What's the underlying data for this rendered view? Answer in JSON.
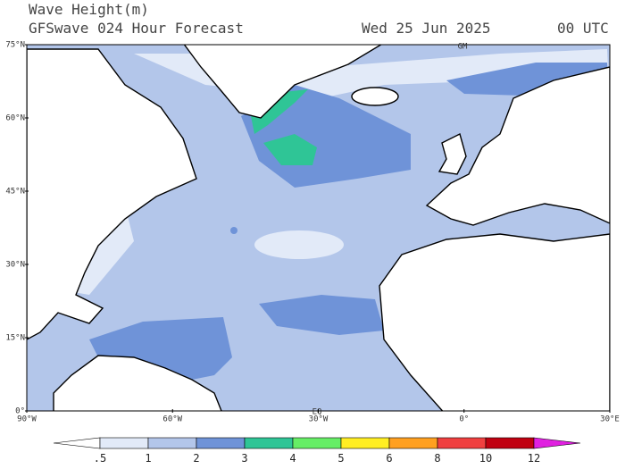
{
  "header": {
    "title": "Wave Height(m)",
    "subtitle": "GFSwave 024 Hour Forecast",
    "date": "Wed 25 Jun 2025",
    "time": "00 UTC"
  },
  "map": {
    "lat_labels": [
      "75°N",
      "60°N",
      "45°N",
      "30°N",
      "15°N",
      "0°"
    ],
    "lon_labels": [
      "90°W",
      "60°W",
      "30°W",
      "0°",
      "30°E"
    ],
    "markers": [
      "GM",
      "EQ"
    ]
  },
  "colorbar": {
    "labels": [
      ".5",
      "1",
      "2",
      "3",
      "4",
      "5",
      "6",
      "8",
      "10",
      "12"
    ],
    "colors": [
      "#ffffff",
      "#e2eaf8",
      "#b3c6ea",
      "#6f93d8",
      "#2fc596",
      "#66ee66",
      "#ffee22",
      "#ffa020",
      "#f04040",
      "#c00010",
      "#e020e0"
    ]
  }
}
